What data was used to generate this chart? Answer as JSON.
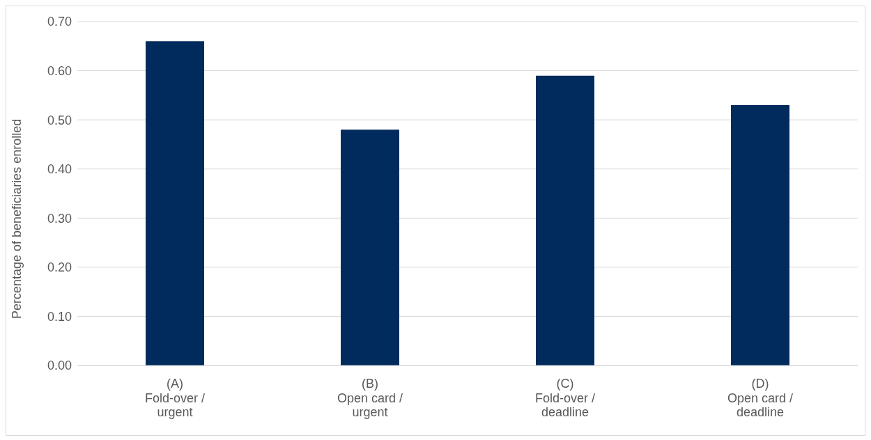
{
  "chart_data": {
    "type": "bar",
    "ylabel": "Percentage of beneficiaries enrolled",
    "categories": [
      "(A)\nFold-over /\nurgent",
      "(B)\nOpen card /\nurgent",
      "(C)\nFold-over /\ndeadline",
      "(D)\nOpen card /\ndeadline"
    ],
    "values": [
      0.66,
      0.48,
      0.59,
      0.53
    ],
    "color": "#002b5c",
    "ylim": [
      0,
      0.7
    ],
    "yticks": [
      {
        "value": 0,
        "label": "0.00"
      },
      {
        "value": 0.1,
        "label": "0.10"
      },
      {
        "value": 0.2,
        "label": "0.20"
      },
      {
        "value": 0.3,
        "label": "0.30"
      },
      {
        "value": 0.4,
        "label": "0.40"
      },
      {
        "value": 0.5,
        "label": "0.50"
      },
      {
        "value": 0.6,
        "label": "0.60"
      },
      {
        "value": 0.7,
        "label": "0.70"
      }
    ],
    "grid": "y",
    "legend": false
  }
}
